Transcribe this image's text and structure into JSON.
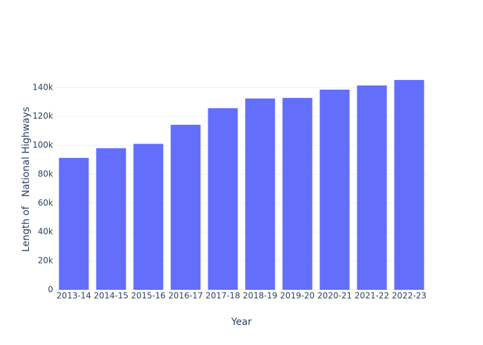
{
  "chart_data": {
    "type": "bar",
    "xlabel": "Year",
    "ylabel": "Length of   National Highways",
    "categories": [
      "2013-14",
      "2014-15",
      "2015-16",
      "2016-17",
      "2017-18",
      "2018-19",
      "2019-20",
      "2020-21",
      "2021-22",
      "2022-23"
    ],
    "values": [
      91300,
      98000,
      101000,
      114200,
      125700,
      132400,
      132800,
      138500,
      141400,
      145200
    ],
    "color": "#636efa",
    "ylim": [
      0,
      152800
    ],
    "yticks": [
      0,
      {
        "value": 20000,
        "label": "20k"
      },
      {
        "value": 40000,
        "label": "40k"
      },
      {
        "value": 60000,
        "label": "60k"
      },
      {
        "value": 80000,
        "label": "80k"
      },
      {
        "value": 100000,
        "label": "100k"
      },
      {
        "value": 120000,
        "label": "120k"
      },
      {
        "value": 140000,
        "label": "140k"
      }
    ],
    "grid": true
  }
}
